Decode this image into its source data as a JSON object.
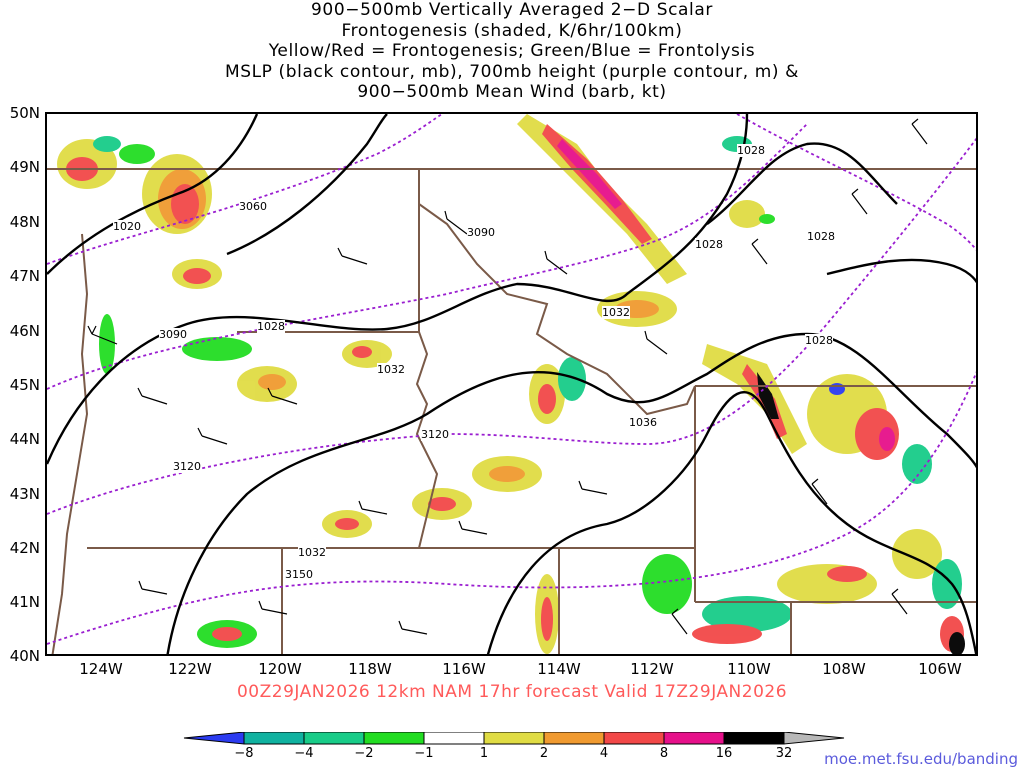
{
  "title": {
    "line1": "900−500mb Vertically Averaged 2−D Scalar",
    "line2": "Frontogenesis (shaded, K/6hr/100km)",
    "line3": "Yellow/Red = Frontogenesis;  Green/Blue = Frontolysis",
    "line4": "MSLP (black contour, mb), 700mb height (purple contour, m) &",
    "line5": "900−500mb Mean Wind (barb, kt)"
  },
  "lat_labels": [
    "50N",
    "49N",
    "48N",
    "47N",
    "46N",
    "45N",
    "44N",
    "43N",
    "42N",
    "41N",
    "40N"
  ],
  "lon_labels": [
    "124W",
    "122W",
    "120W",
    "118W",
    "116W",
    "114W",
    "112W",
    "110W",
    "108W",
    "106W"
  ],
  "forecast_line": "00Z29JAN2026 12km NAM 17hr forecast Valid 17Z29JAN2026",
  "colorbar": {
    "labels": [
      "−8",
      "−4",
      "−2",
      "−1",
      "1",
      "2",
      "4",
      "8",
      "16",
      "32"
    ],
    "colors": [
      "#2b3bf0",
      "#10b2a0",
      "#18cc88",
      "#22dd22",
      "#ffffff",
      "#e0dc44",
      "#f09a30",
      "#f24848",
      "#e6108a",
      "#000000",
      "#b8b8b8"
    ]
  },
  "contour_labels": {
    "mslp": [
      "1020",
      "1028",
      "1028",
      "1028",
      "1028",
      "1028",
      "1032",
      "1032",
      "1032",
      "1036"
    ],
    "height": [
      "3060",
      "3090",
      "3090",
      "3120",
      "3120",
      "3150"
    ]
  },
  "source": "moe.met.fsu.edu/banding",
  "colors": {
    "mslp_contour": "#000000",
    "height_contour": "#9a1ed0",
    "borders": "#7a5a48",
    "forecast_text": "#ff5a5a",
    "source_text": "#5b5bdc"
  }
}
